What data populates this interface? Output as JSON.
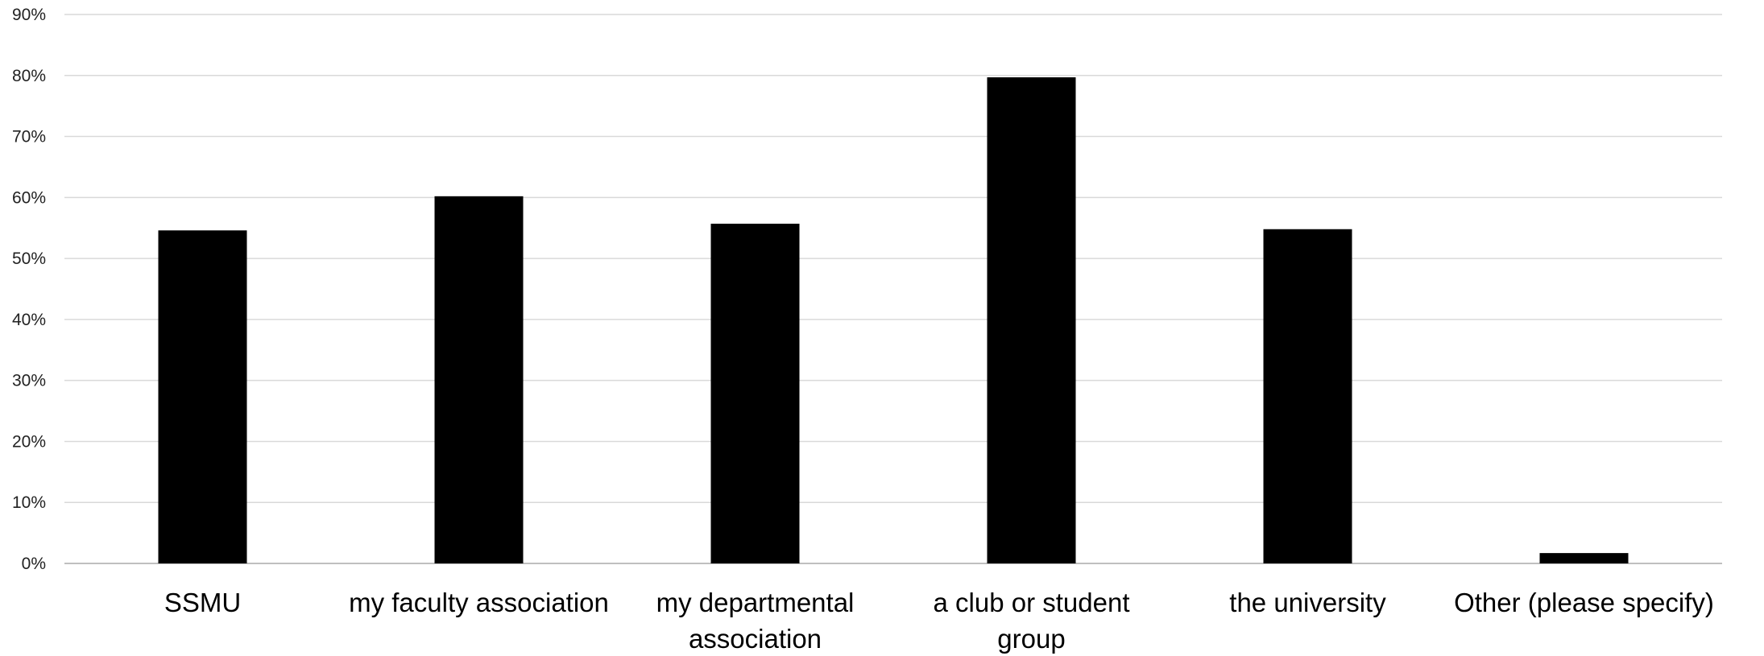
{
  "chart_data": {
    "type": "bar",
    "categories": [
      [
        "SSMU"
      ],
      [
        "my faculty association"
      ],
      [
        "my departmental",
        "association"
      ],
      [
        "a club or student",
        "group"
      ],
      [
        "the university"
      ],
      [
        "Other (please specify)"
      ]
    ],
    "values": [
      0.546,
      0.602,
      0.557,
      0.797,
      0.548,
      0.017
    ],
    "ylim": [
      0,
      0.9
    ],
    "yticks": [
      "0%",
      "10%",
      "20%",
      "30%",
      "40%",
      "50%",
      "60%",
      "70%",
      "80%",
      "90%"
    ],
    "grid": true,
    "bar_color": "#000000",
    "grid_color": "#d9d9d9"
  }
}
